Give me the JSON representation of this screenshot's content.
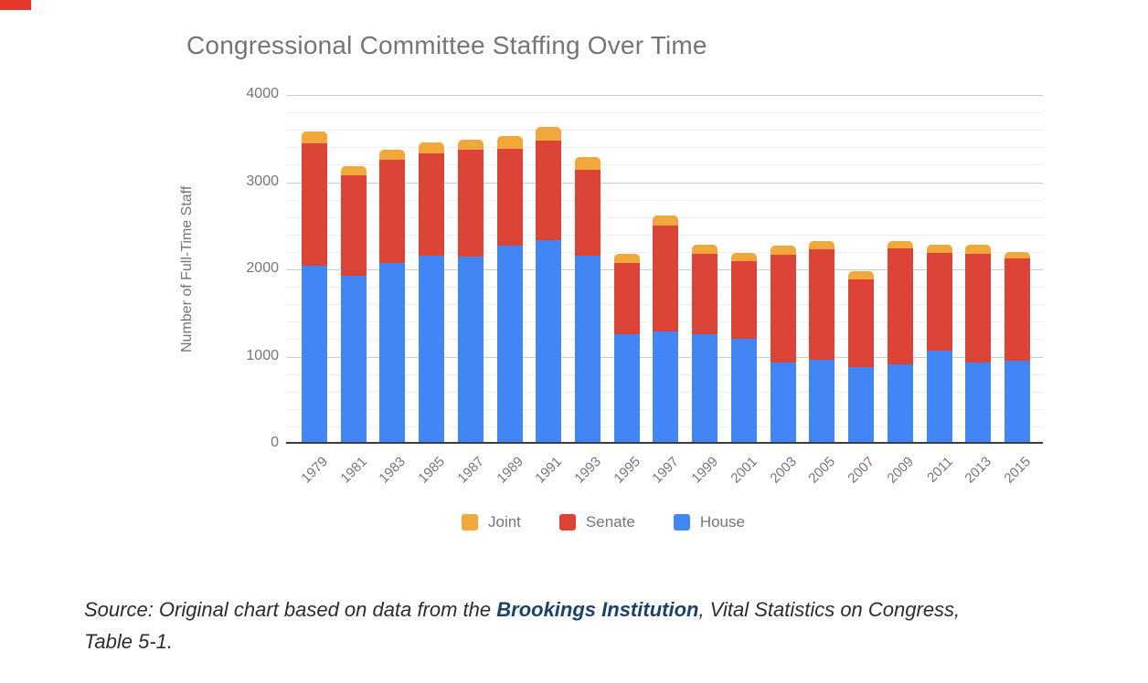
{
  "corner_marker": {
    "color": "#e5372b"
  },
  "chart": {
    "title": "Congressional Committee Staffing Over Time"
  },
  "chart_data": {
    "type": "bar",
    "stacked": true,
    "title": "Congressional Committee Staffing Over Time",
    "ylabel": "Number of Full-Time Staff",
    "xlabel": "",
    "ylim": [
      0,
      4000
    ],
    "y_major_ticks": [
      0,
      1000,
      2000,
      3000,
      4000
    ],
    "y_minor_step": 200,
    "grid": true,
    "legend_position": "bottom",
    "categories": [
      "1979",
      "1981",
      "1983",
      "1985",
      "1987",
      "1989",
      "1991",
      "1993",
      "1995",
      "1997",
      "1999",
      "2001",
      "2003",
      "2005",
      "2007",
      "2009",
      "2011",
      "2013",
      "2015"
    ],
    "series": [
      {
        "name": "House",
        "color": "#4285f4",
        "values": [
          2027,
          1917,
          2068,
          2146,
          2136,
          2267,
          2321,
          2147,
          1246,
          1277,
          1246,
          1190,
          919,
          955,
          867,
          902,
          1060,
          919,
          937
        ]
      },
      {
        "name": "Senate",
        "color": "#db4437",
        "values": [
          1410,
          1148,
          1176,
          1178,
          1223,
          1106,
          1150,
          990,
          820,
          1211,
          920,
          895,
          1236,
          1263,
          1010,
          1334,
          1123,
          1247,
          1176
        ]
      },
      {
        "name": "Joint",
        "color": "#f0a83c",
        "values": [
          138,
          112,
          116,
          123,
          113,
          144,
          151,
          143,
          100,
          116,
          112,
          98,
          106,
          95,
          95,
          77,
          94,
          105,
          81
        ]
      }
    ],
    "legend": [
      {
        "label": "Joint",
        "color": "#f0a83c"
      },
      {
        "label": "Senate",
        "color": "#db4437"
      },
      {
        "label": "House",
        "color": "#4285f4"
      }
    ]
  },
  "source": {
    "prefix": "Source: Original chart based on data from the ",
    "link_text": "Brookings Institution",
    "suffix": ", Vital Statistics on Congress,",
    "line2": "Table 5-1."
  }
}
